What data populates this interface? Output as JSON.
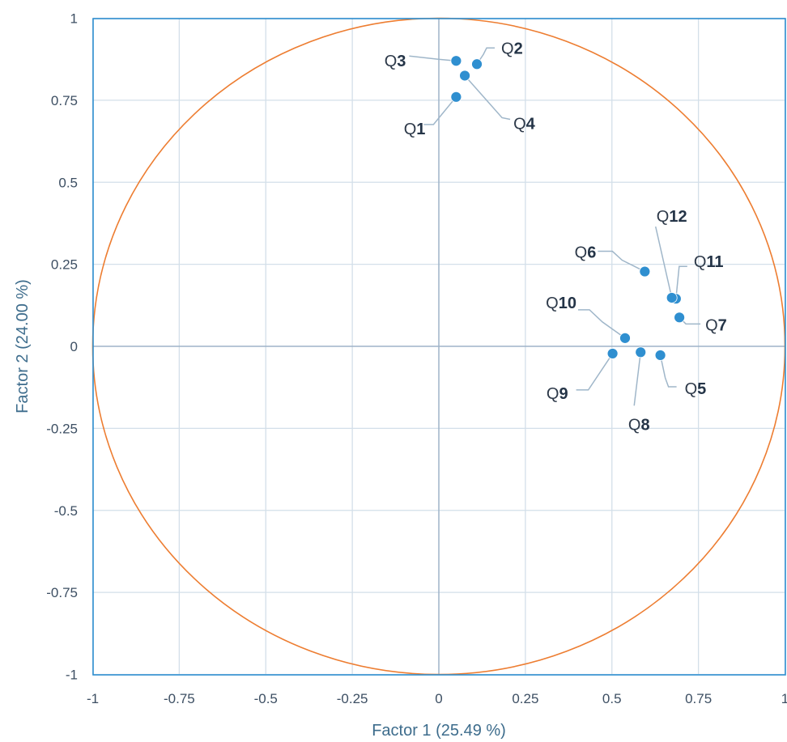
{
  "chart_data": {
    "type": "scatter",
    "xlabel": "Factor 1 (25.49 %)",
    "ylabel": "Factor 2 (24.00 %)",
    "xlim": [
      -1,
      1
    ],
    "ylim": [
      -1,
      1
    ],
    "x_ticks": [
      "-1",
      "-0.75",
      "-0.5",
      "-0.25",
      "0",
      "0.25",
      "0.5",
      "0.75",
      "1"
    ],
    "y_ticks": [
      "1",
      "0.75",
      "0.5",
      "0.25",
      "0",
      "-0.25",
      "-0.5",
      "-0.75",
      "-1"
    ],
    "grid": true,
    "unit_circle": true,
    "colors": {
      "points": "#2f8fd0",
      "circle": "#ed7d31",
      "grid": "#d3dfe9",
      "axis": "#9fb4c8",
      "frame": "#2f8fd0"
    },
    "points": [
      {
        "prefix": "Q",
        "num": "1",
        "x": 0.05,
        "y": 0.76
      },
      {
        "prefix": "Q",
        "num": "2",
        "x": 0.11,
        "y": 0.86
      },
      {
        "prefix": "Q",
        "num": "3",
        "x": 0.05,
        "y": 0.87
      },
      {
        "prefix": "Q",
        "num": "4",
        "x": 0.075,
        "y": 0.825
      },
      {
        "prefix": "Q",
        "num": "5",
        "x": 0.64,
        "y": -0.027
      },
      {
        "prefix": "Q",
        "num": "6",
        "x": 0.595,
        "y": 0.228
      },
      {
        "prefix": "Q",
        "num": "7",
        "x": 0.695,
        "y": 0.088
      },
      {
        "prefix": "Q",
        "num": "8",
        "x": 0.583,
        "y": -0.018
      },
      {
        "prefix": "Q",
        "num": "9",
        "x": 0.502,
        "y": -0.022
      },
      {
        "prefix": "Q",
        "num": "10",
        "x": 0.538,
        "y": 0.025
      },
      {
        "prefix": "Q",
        "num": "11",
        "x": 0.685,
        "y": 0.145
      },
      {
        "prefix": "Q",
        "num": "12",
        "x": 0.673,
        "y": 0.148
      }
    ]
  }
}
